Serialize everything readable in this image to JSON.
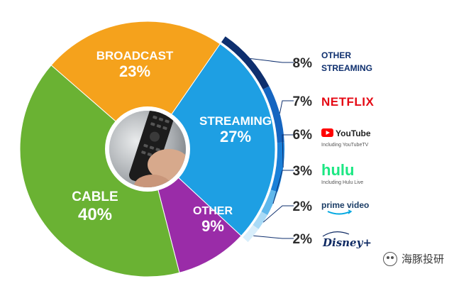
{
  "chart_data": {
    "type": "pie",
    "slices": [
      {
        "label": "BROADCAST",
        "value": 23,
        "value_text": "23%",
        "color": "#f5a21c"
      },
      {
        "label": "STREAMING",
        "value": 27,
        "value_text": "27%",
        "color": "#1e9fe3"
      },
      {
        "label": "OTHER",
        "value": 9,
        "value_text": "9%",
        "color": "#9a2ca8"
      },
      {
        "label": "CABLE",
        "value": 40,
        "value_text": "40%",
        "color": "#6ab233"
      }
    ],
    "streaming_breakdown": [
      {
        "name": "OTHER STREAMING",
        "line1": "OTHER",
        "line2": "STREAMING",
        "value": 8,
        "value_text": "8%",
        "color": "#0e2f6e",
        "icon": "text-logo"
      },
      {
        "name": "NETFLIX",
        "value": 7,
        "value_text": "7%",
        "color": "#1565c0",
        "icon": "netflix-logo"
      },
      {
        "name": "YouTube",
        "sub": "Including YouTubeTV",
        "value": 6,
        "value_text": "6%",
        "color": "#1a80d8",
        "icon": "youtube-logo"
      },
      {
        "name": "hulu",
        "sub": "Including Hulu Live",
        "value": 3,
        "value_text": "3%",
        "color": "#5fb8ec",
        "icon": "hulu-logo"
      },
      {
        "name": "prime video",
        "value": 2,
        "value_text": "2%",
        "color": "#a9daf6",
        "icon": "prime-video-logo"
      },
      {
        "name": "Disney+",
        "value": 2,
        "value_text": "2%",
        "color": "#d8eefb",
        "icon": "disney-plus-logo"
      }
    ]
  },
  "watermark": {
    "text": "海豚投研"
  },
  "colors": {
    "netflix": "#e50914",
    "youtube_red": "#ff0000",
    "hulu": "#1ce783",
    "prime": "#00a8e1",
    "navy": "#0e2f6e",
    "disney": "#0f2a63"
  }
}
